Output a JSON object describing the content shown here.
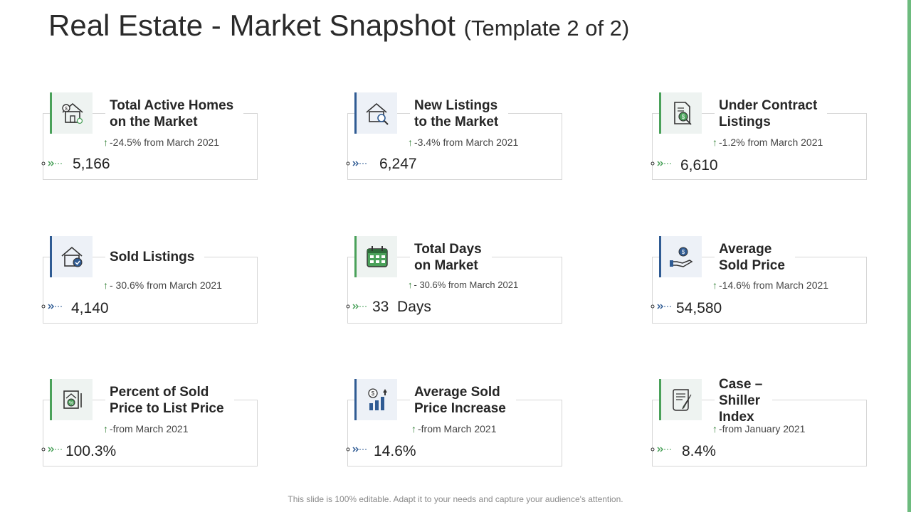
{
  "title": {
    "main": "Real Estate - Market Snapshot",
    "sub": "(Template 2 of 2)"
  },
  "cards": [
    {
      "heading1": "Total Active Homes",
      "heading2": "on the Market",
      "change": "-24.5% from March 2021",
      "value": "5,166",
      "icon": "house-dollar-icon"
    },
    {
      "heading1": "New Listings",
      "heading2": "to the Market",
      "change": "-3.4% from March 2021",
      "value": "6,247",
      "icon": "house-search-icon"
    },
    {
      "heading1": "Under Contract",
      "heading2": "Listings",
      "change": "-1.2% from March 2021",
      "value": "6,610",
      "icon": "contract-dollar-icon"
    },
    {
      "heading1": "Sold Listings",
      "heading2": "",
      "change": "- 30.6% from March 2021",
      "value": "4,140",
      "icon": "house-check-icon"
    },
    {
      "heading1": "Total Days",
      "heading2": "on Market",
      "change": "- 30.6% from  March 2021",
      "value": "33  Days",
      "icon": "calendar-icon"
    },
    {
      "heading1": "Average",
      "heading2": "Sold Price",
      "change": "-14.6% from March 2021",
      "value": "54,580",
      "icon": "hand-coin-icon"
    },
    {
      "heading1": "Percent of Sold",
      "heading2": "Price to List Price",
      "change": "-from March 2021",
      "value": "100.3%",
      "icon": "price-tag-icon"
    },
    {
      "heading1": "Average Sold",
      "heading2": "Price Increase",
      "change": "-from March 2021",
      "value": "14.6%",
      "icon": "growth-chart-icon"
    },
    {
      "heading1": "Case –",
      "heading2": "Shiller",
      "heading3": "Index",
      "change": "-from January 2021",
      "value": "8.4%",
      "icon": "scroll-document-icon"
    }
  ],
  "footer": "This slide is 100% editable. Adapt it to your needs and capture your audience's attention.",
  "colors": {
    "green": "#4aa15a",
    "blue": "#2f5b93",
    "accent_bar": "#6dbb7e"
  }
}
